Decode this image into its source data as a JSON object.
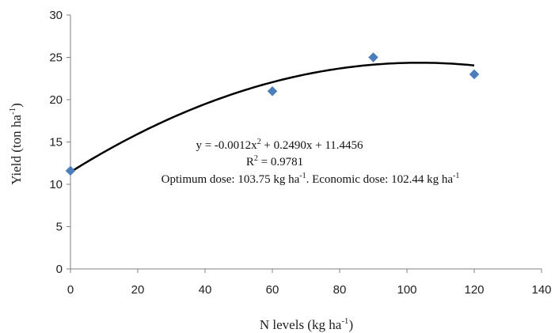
{
  "chart_data": {
    "type": "scatter",
    "title": "",
    "xlabel": "N levels (kg ha",
    "xlabel_sup": "-1",
    "xlabel_end": ")",
    "ylabel": "Yield (ton ha",
    "ylabel_sup": "-1",
    "ylabel_end": ")",
    "xlim": [
      0,
      140
    ],
    "ylim": [
      0,
      30
    ],
    "x_ticks": [
      "0",
      "20",
      "40",
      "60",
      "80",
      "100",
      "120",
      "140"
    ],
    "y_ticks": [
      "0",
      "5",
      "10",
      "15",
      "20",
      "25",
      "30"
    ],
    "grid": false,
    "series": [
      {
        "marker": "diamond",
        "color": "#4a7ebb",
        "points": [
          {
            "x": 0,
            "y": 11.6
          },
          {
            "x": 60,
            "y": 21.0
          },
          {
            "x": 90,
            "y": 25.0
          },
          {
            "x": 120,
            "y": 23.0
          }
        ]
      }
    ],
    "trendline": {
      "type": "polynomial",
      "order": 2,
      "coefficients": {
        "a": -0.0012,
        "b": 0.249,
        "c": 11.4456
      },
      "x_range": [
        0,
        120
      ],
      "color": "#000000"
    },
    "annotations": {
      "equation": {
        "text_a": "y = -0.0012x",
        "sup_a": "2",
        "text_b": " + 0.2490x + 11.4456"
      },
      "r2": {
        "text_a": "R",
        "sup_a": "2",
        "text_b": " = 0.9781"
      },
      "doses": {
        "text_a": "Optimum dose: 103.75 kg ha",
        "sup_a": "-1",
        "text_b": ". Economic dose: 102.44 kg ha",
        "sup_b": "-1"
      }
    }
  }
}
